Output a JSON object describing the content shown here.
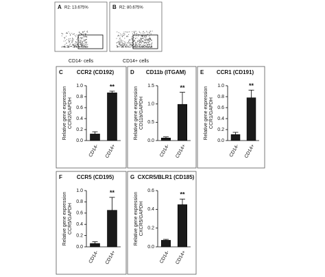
{
  "flow_panels": [
    {
      "label": "A",
      "gate": "R2: 13.675%",
      "caption": "CD14- cells"
    },
    {
      "label": "B",
      "gate": "R2: 80.675%",
      "caption": "CD14+ cells"
    }
  ],
  "chart_data": [
    {
      "type": "bar",
      "label": "C",
      "title": "CCR2 (CD192)",
      "ylabel": [
        "Relative gene expression",
        "CCR2/GAPDH"
      ],
      "categories": [
        "CD14-",
        "CD14+"
      ],
      "values": [
        0.12,
        0.87
      ],
      "errors": [
        0.04,
        0.03
      ],
      "color": "#1a1a1a",
      "ylim": [
        0,
        1.0
      ],
      "yticks": [
        {
          "value": 0,
          "label": "0.0"
        },
        0.2,
        0.4,
        0.6,
        0.8,
        {
          "value": 1,
          "label": "1.0"
        }
      ],
      "annotations": [
        {
          "text": "**",
          "x": "CD14+"
        }
      ]
    },
    {
      "type": "bar",
      "label": "D",
      "title": "CD11b (ITGAM)",
      "ylabel": [
        "Relative gene expression",
        "CD11b/GAPDH"
      ],
      "categories": [
        "CD14-",
        "CD14+"
      ],
      "values": [
        0.07,
        0.99
      ],
      "errors": [
        0.03,
        0.33
      ],
      "color": "#1a1a1a",
      "ylim": [
        0,
        1.5
      ],
      "yticks": [
        {
          "value": 0,
          "label": "0.0"
        },
        0.5,
        {
          "value": 1,
          "label": "1.0"
        },
        1.5
      ],
      "annotations": [
        {
          "text": "**",
          "x": "CD14+"
        }
      ]
    },
    {
      "type": "bar",
      "label": "E",
      "title": "CCR1 (CD191)",
      "ylabel": [
        "Relative gene expression",
        "CCR1/GAPDH"
      ],
      "categories": [
        "CD14-",
        "CD14+"
      ],
      "values": [
        0.11,
        0.78
      ],
      "errors": [
        0.04,
        0.14
      ],
      "color": "#1a1a1a",
      "ylim": [
        0,
        1.0
      ],
      "yticks": [
        {
          "value": 0,
          "label": "0.0"
        },
        0.2,
        0.4,
        0.6,
        0.8,
        {
          "value": 1,
          "label": "1.0"
        }
      ],
      "annotations": [
        {
          "text": "**",
          "x": "CD14+"
        }
      ]
    },
    {
      "type": "bar",
      "label": "F",
      "title": "CCR5 (CD195)",
      "ylabel": [
        "Relative gene expression",
        "CCR5/GAPDH"
      ],
      "categories": [
        "CD14-",
        "CD14+"
      ],
      "values": [
        0.06,
        0.65
      ],
      "errors": [
        0.03,
        0.23
      ],
      "color": "#1a1a1a",
      "ylim": [
        0,
        1.0
      ],
      "yticks": [
        {
          "value": 0,
          "label": "0.0"
        },
        0.2,
        0.4,
        0.6,
        0.8,
        {
          "value": 1,
          "label": "1.0"
        }
      ],
      "annotations": [
        {
          "text": "**",
          "x": "CD14+"
        }
      ]
    },
    {
      "type": "bar",
      "label": "G",
      "title": "CXCR5/BLR1 (CD185)",
      "ylabel": [
        "Relative gene expression",
        "CXCR5/GAPDH"
      ],
      "categories": [
        "CD14-",
        "CD14+"
      ],
      "values": [
        0.07,
        0.45
      ],
      "errors": [
        0.01,
        0.06
      ],
      "color": "#1a1a1a",
      "ylim": [
        0,
        0.6
      ],
      "yticks": [
        {
          "value": 0,
          "label": "0.0"
        },
        0.2,
        0.4,
        0.6
      ],
      "annotations": [
        {
          "text": "**",
          "x": "CD14+"
        }
      ]
    }
  ]
}
